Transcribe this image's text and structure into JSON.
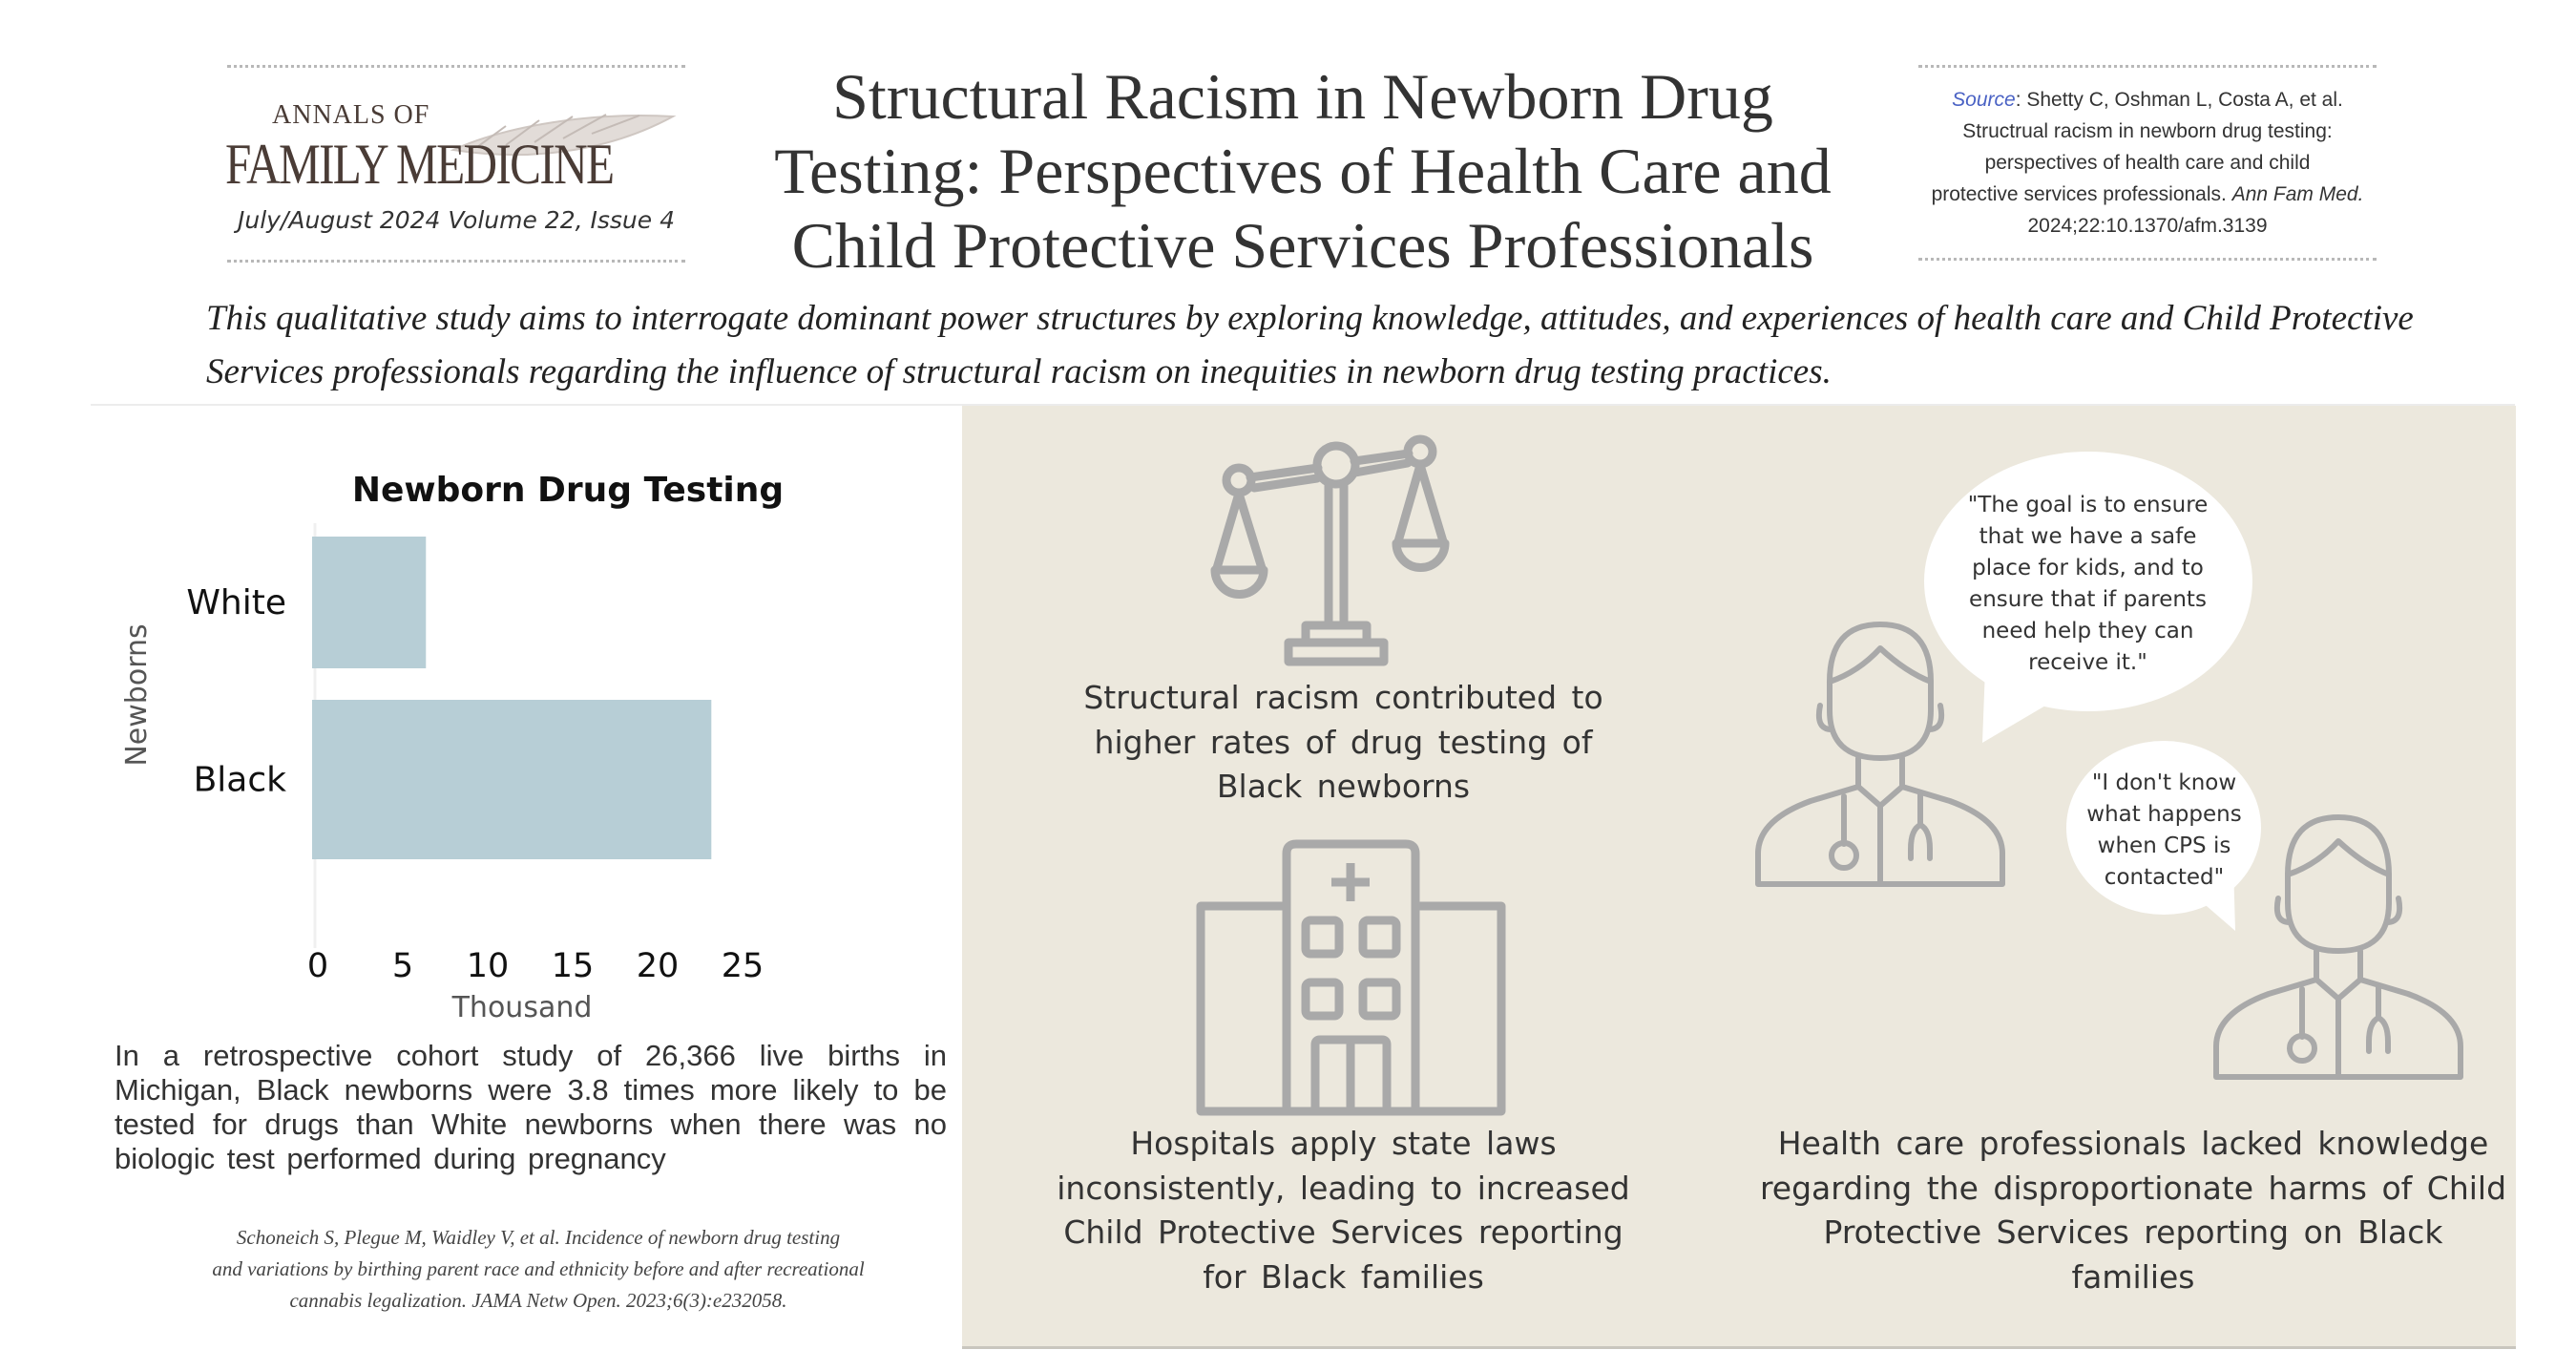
{
  "header": {
    "logo": {
      "line1": "Annals of",
      "line2": "Family Medicine"
    },
    "issue": "July/August 2024 Volume 22, Issue 4",
    "title_lines": [
      "Structural Racism in Newborn Drug",
      "Testing: Perspectives of Health Care and",
      "Child Protective Services Professionals"
    ],
    "source": {
      "label": "Source",
      "line1": ": Shetty C, Oshman L, Costa A, et al.",
      "line2": "Structrual racism in newborn drug testing:",
      "line3": "perspectives of health care and child",
      "line4a": "protective services professionals. ",
      "line4b": "Ann Fam Med.",
      "line5": "2024;22:10.1370/afm.3139"
    },
    "subtitle": "This qualitative study aims to interrogate dominant power structures by exploring knowledge, attitudes, and experiences of health care and Child Protective Services professionals regarding the influence of structural racism on inequities in newborn drug testing practices."
  },
  "chart_data": {
    "type": "bar",
    "orientation": "horizontal",
    "title": "Newborn Drug Testing",
    "categories": [
      "White",
      "Black"
    ],
    "values": [
      6.7,
      23.5
    ],
    "xlabel": "Thousand",
    "ylabel": "Newborns",
    "xlim": [
      0,
      25
    ],
    "xticks": [
      "0",
      "5",
      "10",
      "15",
      "20",
      "25"
    ],
    "bar_color": "#b7ced6",
    "grid": false
  },
  "left": {
    "paragraph": "In a retrospective cohort study of 26,366 live births in Michigan, Black newborns were 3.8 times more likely to be tested for drugs than White newborns when there was no biologic test performed during pregnancy",
    "citation_lines": [
      "Schoneich S, Plegue M, Waidley V, et al. Incidence of newborn drug testing",
      "and variations by birthing parent race and ethnicity before and after recreational",
      "cannabis legalization. JAMA Netw Open. 2023;6(3):e232058."
    ]
  },
  "panel": {
    "background": "#ece8dd",
    "icon_color": "#a9a9a9",
    "finding1": "Structural racism contributed to higher rates of drug testing of Black newborns",
    "finding2": "Hospitals apply state laws inconsistently, leading to increased Child Protective Services reporting for Black families",
    "finding3": "Health care professionals lacked knowledge regarding the disproportionate harms of Child Protective Services reporting on Black families",
    "quote1": "\"The goal is to ensure that we have a safe place for kids, and to ensure that if parents need help they can receive it.\"",
    "quote2": "\"I don't know what happens when CPS is contacted\"",
    "icons": [
      "scales-of-justice-icon",
      "hospital-icon",
      "doctor-icon",
      "doctor-icon"
    ]
  }
}
